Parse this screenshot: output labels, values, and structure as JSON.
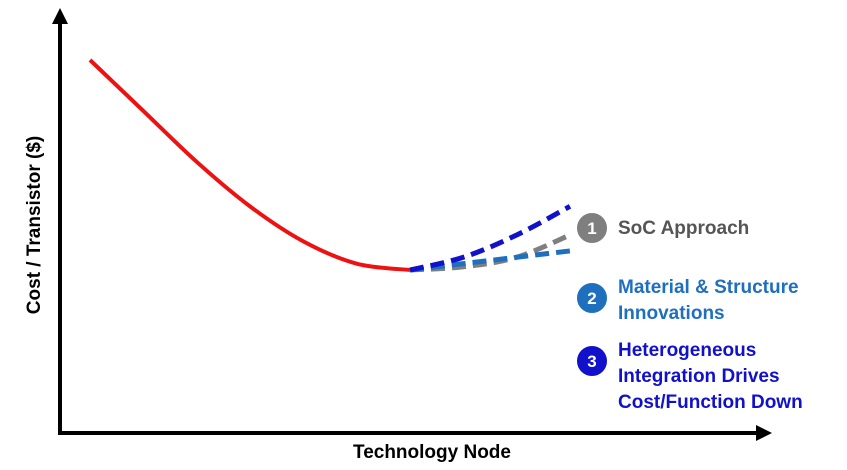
{
  "chart_data": {
    "type": "line",
    "title": "",
    "xlabel": "Technology Node",
    "ylabel": "Cost / Transistor ($)",
    "grid": false,
    "legend": "none",
    "series": [
      {
        "style": "solid",
        "color": "#ee1111",
        "values": [
          {
            "x": 0.0,
            "y": 0.0
          },
          {
            "x": 0.1,
            "y": 0.16
          },
          {
            "x": 0.2,
            "y": 0.32
          },
          {
            "x": 0.3,
            "y": 0.46
          },
          {
            "x": 0.4,
            "y": 0.57
          },
          {
            "x": 0.5,
            "y": 0.64
          },
          {
            "x": 0.6,
            "y": 0.66
          }
        ]
      },
      {
        "id": "soc",
        "number": "1",
        "label_lines": [
          "SoC Approach"
        ],
        "color": "#7f7f7f",
        "text_color": "#555555",
        "style": "dashed",
        "values": [
          {
            "x": 0.6,
            "y": 0.66
          },
          {
            "x": 0.7,
            "y": 0.65
          },
          {
            "x": 0.8,
            "y": 0.62
          },
          {
            "x": 0.9,
            "y": 0.55
          }
        ]
      },
      {
        "id": "material",
        "number": "2",
        "label_lines": [
          "Material & Structure",
          "Innovations"
        ],
        "color": "#1f6fbf",
        "text_color": "#1f6fbf",
        "style": "dashed",
        "values": [
          {
            "x": 0.6,
            "y": 0.66
          },
          {
            "x": 0.7,
            "y": 0.64
          },
          {
            "x": 0.8,
            "y": 0.62
          },
          {
            "x": 0.9,
            "y": 0.6
          }
        ]
      },
      {
        "id": "hetero",
        "number": "3",
        "label_lines": [
          "Heterogeneous",
          "Integration Drives",
          "Cost/Function Down"
        ],
        "color": "#1111cc",
        "text_color": "#1111cc",
        "style": "dashed",
        "values": [
          {
            "x": 0.6,
            "y": 0.66
          },
          {
            "x": 0.7,
            "y": 0.62
          },
          {
            "x": 0.8,
            "y": 0.55
          },
          {
            "x": 0.9,
            "y": 0.46
          }
        ]
      }
    ]
  }
}
